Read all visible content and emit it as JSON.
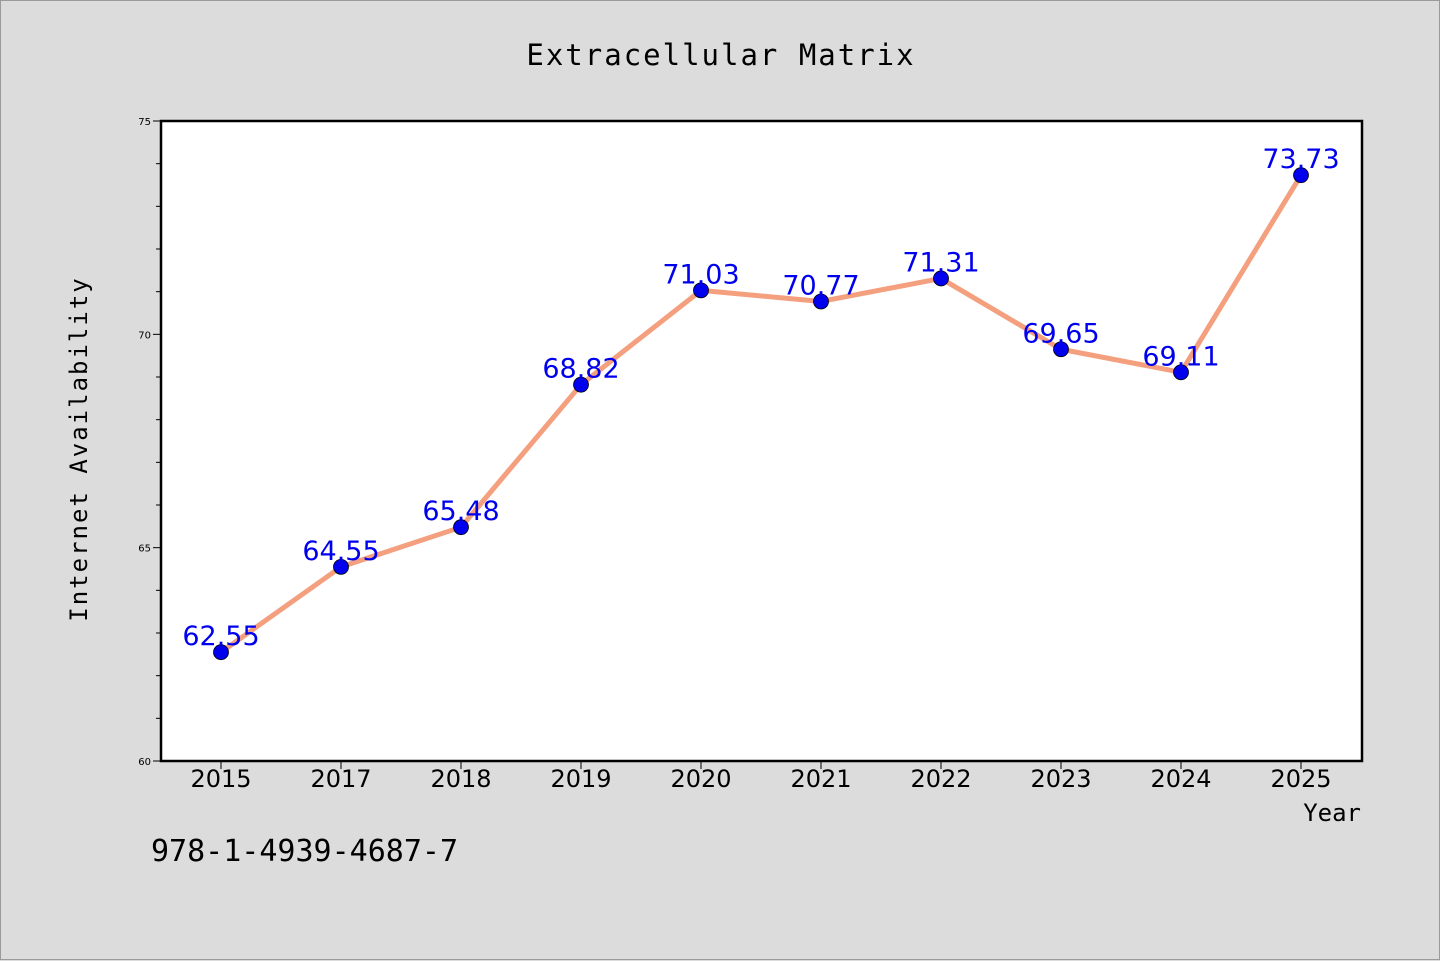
{
  "chart_data": {
    "type": "line",
    "title": "Extracellular Matrix",
    "xlabel": "Year",
    "ylabel": "Internet Availability",
    "categories": [
      "2015",
      "2017",
      "2018",
      "2019",
      "2020",
      "2021",
      "2022",
      "2023",
      "2024",
      "2025"
    ],
    "series": [
      {
        "values": [
          62.55,
          64.55,
          65.48,
          68.82,
          71.03,
          70.77,
          71.31,
          69.65,
          69.11,
          73.73
        ],
        "labels": [
          "62.55",
          "64.55",
          "65.48",
          "68.82",
          "71.03",
          "70.77",
          "71.31",
          "69.65",
          "69.11",
          "73.73"
        ]
      }
    ],
    "ylim": [
      60,
      75
    ],
    "yticks": [
      "60",
      "65",
      "70",
      "75"
    ],
    "grid": false,
    "line_color": "#f4a07f",
    "marker_color": "#0000ee",
    "label_color": "#0000ee"
  },
  "footer": {
    "isbn": "978-1-4939-4687-7"
  }
}
